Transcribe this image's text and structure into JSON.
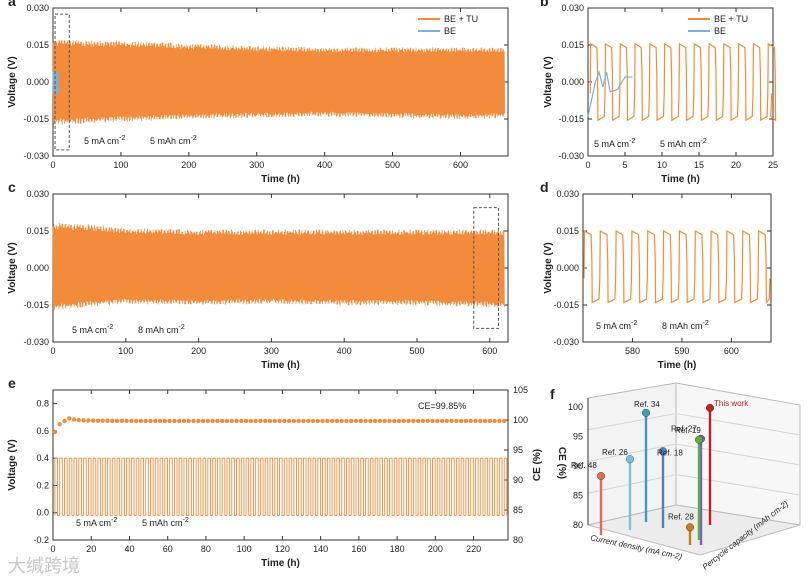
{
  "colors": {
    "be_tu": "#F28C3C",
    "be": "#7FAFD4",
    "axis": "#333333",
    "refbg": "#f3f3f3"
  },
  "watermark": "大缄跨境",
  "panels": {
    "a": {
      "letter": "a",
      "xlabel": "Time (h)",
      "ylabel": "Voltage (V)",
      "xticks": [
        "0",
        "100",
        "200",
        "300",
        "400",
        "500",
        "600"
      ],
      "yticks": [
        "0.030",
        "0.015",
        "0.000",
        "-0.015",
        "-0.030"
      ],
      "legend": [
        "BE + TU",
        "BE"
      ],
      "annotation_current": "5 mA cm",
      "annotation_capacity": "5 mAh cm",
      "sup": "-2"
    },
    "b": {
      "letter": "b",
      "xlabel": "Time (h)",
      "ylabel": "Voltage (V)",
      "xticks": [
        "0",
        "5",
        "10",
        "15",
        "20",
        "25"
      ],
      "yticks": [
        "0.030",
        "0.015",
        "0.000",
        "-0.015",
        "-0.030"
      ],
      "legend": [
        "BE + TU",
        "BE"
      ],
      "annotation_current": "5 mA cm",
      "annotation_capacity": "5 mAh cm",
      "sup": "-2"
    },
    "c": {
      "letter": "c",
      "xlabel": "Time (h)",
      "ylabel": "Voltage (V)",
      "xticks": [
        "0",
        "100",
        "200",
        "300",
        "400",
        "500",
        "600"
      ],
      "yticks": [
        "0.030",
        "0.015",
        "0.000",
        "-0.015",
        "-0.030"
      ],
      "annotation_current": "5 mA cm",
      "annotation_capacity": "8 mAh cm",
      "sup": "-2"
    },
    "d": {
      "letter": "d",
      "xlabel": "Time (h)",
      "ylabel": "Voltage (V)",
      "xticks": [
        "580",
        "590",
        "600"
      ],
      "yticks": [
        "0.030",
        "0.015",
        "0.000",
        "-0.015",
        "-0.030"
      ],
      "annotation_current": "5 mA cm",
      "annotation_capacity": "8 mAh cm",
      "sup": "-2"
    },
    "e": {
      "letter": "e",
      "xlabel": "Time (h)",
      "ylabel": "Voltage (V)",
      "y2label": "CE (%)",
      "xticks": [
        "0",
        "20",
        "40",
        "60",
        "80",
        "100",
        "120",
        "140",
        "160",
        "180",
        "200",
        "220"
      ],
      "yticks": [
        "0.8",
        "0.6",
        "0.4",
        "0.2",
        "0.0",
        "-0.2"
      ],
      "y2ticks": [
        "105",
        "100",
        "95",
        "90",
        "85",
        "80"
      ],
      "ce_text": "CE=99.85%",
      "annotation_current": "5 mA cm",
      "annotation_capacity": "5 mAh cm",
      "sup": "-2"
    },
    "f": {
      "letter": "f",
      "zlabel": "CE (%)",
      "zticks": [
        "100",
        "95",
        "90",
        "85",
        "80"
      ],
      "xlabel": "Current density (mA cm",
      "ylabel": "Percycle capacity (mAh cm",
      "sup": "-2"
    }
  },
  "chart_data": [
    {
      "panel": "a",
      "type": "line",
      "title": "",
      "xlabel": "Time (h)",
      "ylabel": "Voltage (V)",
      "xlim": [
        0,
        670
      ],
      "ylim": [
        -0.03,
        0.03
      ],
      "series": [
        {
          "name": "BE + TU",
          "envelope": {
            "x": [
              0,
              20,
              60,
              100,
              200,
              300,
              400,
              500,
              600,
              665
            ],
            "upper": [
              0.016,
              0.016,
              0.0155,
              0.0155,
              0.0145,
              0.0135,
              0.013,
              0.013,
              0.013,
              0.013
            ],
            "lower": [
              -0.016,
              -0.016,
              -0.0155,
              -0.015,
              -0.014,
              -0.0135,
              -0.013,
              -0.0135,
              -0.014,
              -0.0135
            ]
          }
        },
        {
          "name": "BE",
          "envelope": {
            "x": [
              0,
              8
            ],
            "upper": [
              0.004,
              0.004
            ],
            "lower": [
              -0.005,
              -0.005
            ]
          }
        }
      ]
    },
    {
      "panel": "b",
      "type": "line",
      "xlabel": "Time (h)",
      "ylabel": "Voltage (V)",
      "xlim": [
        0,
        25
      ],
      "ylim": [
        -0.03,
        0.03
      ],
      "series": [
        {
          "name": "BE + TU",
          "cycle_period_h": 2,
          "plateau": [
            0.015,
            -0.015
          ]
        },
        {
          "name": "BE",
          "x": [
            0,
            1,
            1.5,
            2,
            2.5,
            3,
            4,
            5,
            6
          ],
          "y": [
            -0.014,
            0.0,
            0.004,
            -0.002,
            0.004,
            -0.004,
            -0.003,
            0.002,
            0.002
          ]
        }
      ]
    },
    {
      "panel": "c",
      "type": "line",
      "xlabel": "Time (h)",
      "ylabel": "Voltage (V)",
      "xlim": [
        0,
        625
      ],
      "ylim": [
        -0.03,
        0.03
      ],
      "series": [
        {
          "name": "BE + TU",
          "envelope": {
            "x": [
              0,
              50,
              100,
              200,
              300,
              400,
              500,
              620
            ],
            "upper": [
              0.017,
              0.0165,
              0.015,
              0.0145,
              0.0145,
              0.0145,
              0.0145,
              0.0145
            ],
            "lower": [
              -0.016,
              -0.0145,
              -0.0135,
              -0.014,
              -0.0135,
              -0.014,
              -0.014,
              -0.015
            ]
          }
        }
      ]
    },
    {
      "panel": "d",
      "type": "line",
      "xlabel": "Time (h)",
      "ylabel": "Voltage (V)",
      "xlim": [
        570,
        608
      ],
      "ylim": [
        -0.03,
        0.03
      ],
      "series": [
        {
          "name": "BE + TU",
          "cycle_period_h": 3.2,
          "plateau": [
            0.015,
            -0.014
          ]
        }
      ]
    },
    {
      "panel": "e",
      "type": "line",
      "xlabel": "Time (h)",
      "ylabel": "Voltage (V)",
      "y2label": "CE (%)",
      "xlim": [
        0,
        238
      ],
      "ylim": [
        -0.2,
        0.9
      ],
      "y2lim": [
        80,
        105
      ],
      "series": [
        {
          "name": "Voltage",
          "cycle_period_h": 2.5,
          "high": 0.4,
          "low": -0.02
        },
        {
          "name": "CE",
          "x": [
            1,
            3,
            5,
            8,
            12,
            20,
            40,
            80,
            120,
            160,
            200,
            236
          ],
          "y": [
            98.0,
            99.2,
            99.6,
            100.3,
            100.0,
            99.9,
            99.85,
            99.85,
            99.85,
            99.85,
            99.85,
            99.85
          ]
        }
      ]
    },
    {
      "panel": "f",
      "type": "scatter",
      "zlabel": "CE (%)",
      "xlabel": "Current density (mA cm-2)",
      "ylabel": "Percycle capacity (mAh cm-2)",
      "zlim": [
        80,
        100
      ],
      "points": [
        {
          "label": "Ref. 48",
          "ce": 90.0,
          "color": "#E36C4B"
        },
        {
          "label": "Ref. 26",
          "ce": 92.0,
          "color": "#7BC4D8"
        },
        {
          "label": "Ref. 34",
          "ce": 98.5,
          "color": "#3BA0B5"
        },
        {
          "label": "Ref. 18",
          "ce": 93.0,
          "color": "#4E7FC2"
        },
        {
          "label": "Ref. 19",
          "ce": 98.0,
          "color": "#7C5CC4"
        },
        {
          "label": "Ref. 27",
          "ce": 97.0,
          "color": "#5DAE3B"
        },
        {
          "label": "This work",
          "ce": 99.85,
          "color": "#C0201E"
        },
        {
          "label": "Ref. 28",
          "ce": 83.0,
          "color": "#C97A1A"
        }
      ]
    }
  ]
}
